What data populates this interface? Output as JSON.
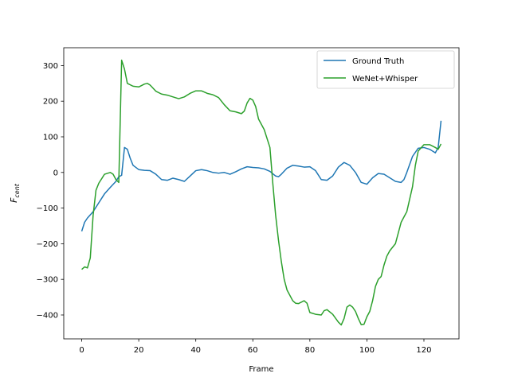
{
  "chart_data": {
    "type": "line",
    "xlabel": "Frame",
    "ylabel": "F",
    "ylabel_sub": "cent",
    "xlim": [
      -6.3,
      132.3
    ],
    "ylim": [
      -467,
      350
    ],
    "xticks": [
      0,
      20,
      40,
      60,
      80,
      100,
      120
    ],
    "yticks": [
      {
        "value": -400,
        "label": "−400"
      },
      {
        "value": -300,
        "label": "−300"
      },
      {
        "value": -200,
        "label": "−200"
      },
      {
        "value": -100,
        "label": "−100"
      },
      0,
      100,
      200,
      300
    ],
    "legend": "upper right",
    "series": [
      {
        "name": "Ground Truth",
        "color": "#1f77b4",
        "x": [
          0,
          1,
          2,
          4,
          6,
          8,
          10,
          12,
          13,
          14,
          15,
          16,
          17,
          18,
          20,
          22,
          24,
          26,
          28,
          30,
          32,
          34,
          36,
          38,
          40,
          42,
          44,
          46,
          48,
          50,
          52,
          54,
          56,
          58,
          60,
          62,
          64,
          66,
          68,
          69,
          70,
          72,
          74,
          76,
          78,
          80,
          82,
          84,
          86,
          88,
          90,
          92,
          94,
          96,
          98,
          100,
          102,
          104,
          106,
          108,
          110,
          112,
          113,
          114,
          116,
          118,
          120,
          122,
          124,
          125,
          126
        ],
        "values": [
          -165,
          -140,
          -128,
          -110,
          -85,
          -60,
          -42,
          -25,
          -12,
          -8,
          70,
          65,
          40,
          20,
          8,
          6,
          5,
          -5,
          -20,
          -22,
          -16,
          -20,
          -25,
          -10,
          5,
          8,
          5,
          0,
          -2,
          0,
          -5,
          2,
          10,
          16,
          14,
          13,
          10,
          3,
          -10,
          -12,
          -5,
          12,
          20,
          18,
          15,
          16,
          5,
          -20,
          -22,
          -10,
          15,
          28,
          20,
          0,
          -28,
          -33,
          -15,
          -3,
          -5,
          -15,
          -25,
          -28,
          -20,
          0,
          45,
          68,
          70,
          65,
          55,
          70,
          145
        ]
      },
      {
        "name": "WeNet+Whisper",
        "color": "#2ca02c",
        "x": [
          0,
          1,
          2,
          3,
          4,
          5,
          6,
          8,
          10,
          11,
          12,
          13,
          14,
          15,
          16,
          18,
          20,
          22,
          23,
          24,
          26,
          28,
          30,
          32,
          34,
          36,
          38,
          40,
          42,
          44,
          46,
          48,
          50,
          52,
          54,
          56,
          57,
          58,
          59,
          60,
          61,
          62,
          64,
          66,
          67,
          68,
          69,
          70,
          71,
          72,
          74,
          75,
          76,
          78,
          79,
          80,
          82,
          84,
          85,
          86,
          88,
          90,
          91,
          92,
          93,
          94,
          95,
          96,
          97,
          98,
          99,
          100,
          101,
          102,
          103,
          104,
          105,
          106,
          107,
          108,
          110,
          112,
          114,
          116,
          117,
          118,
          120,
          122,
          124,
          125,
          126
        ],
        "values": [
          -272,
          -265,
          -268,
          -240,
          -120,
          -50,
          -30,
          -5,
          0,
          -5,
          -20,
          -28,
          315,
          290,
          250,
          242,
          240,
          248,
          250,
          245,
          228,
          220,
          217,
          212,
          207,
          212,
          222,
          229,
          229,
          222,
          218,
          210,
          190,
          173,
          170,
          165,
          172,
          195,
          208,
          203,
          185,
          150,
          120,
          70,
          -30,
          -120,
          -190,
          -250,
          -300,
          -330,
          -360,
          -367,
          -368,
          -360,
          -367,
          -393,
          -398,
          -400,
          -388,
          -385,
          -398,
          -420,
          -428,
          -410,
          -378,
          -372,
          -378,
          -390,
          -410,
          -427,
          -426,
          -405,
          -390,
          -360,
          -320,
          -300,
          -292,
          -260,
          -235,
          -220,
          -200,
          -140,
          -110,
          -40,
          20,
          60,
          78,
          78,
          70,
          65,
          80
        ]
      }
    ]
  }
}
